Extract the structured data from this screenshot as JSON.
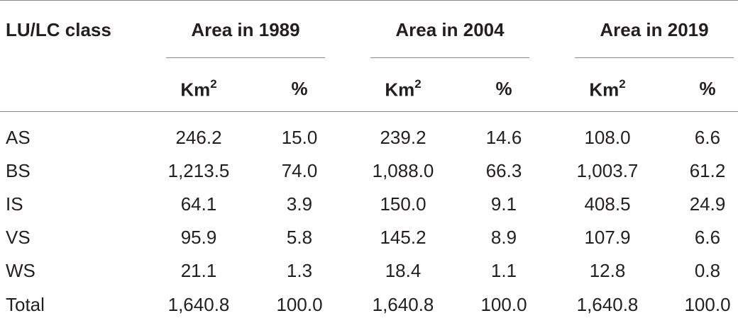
{
  "table": {
    "header": {
      "class_label": "LU/LC class",
      "groups": [
        "Area in 1989",
        "Area in 2004",
        "Area in 2019"
      ],
      "unit_km": "Km",
      "unit_km_sup": "2",
      "unit_pct": "%"
    },
    "rows": [
      {
        "label": "AS",
        "values": [
          "246.2",
          "15.0",
          "239.2",
          "14.6",
          "108.0",
          "6.6"
        ]
      },
      {
        "label": "BS",
        "values": [
          "1,213.5",
          "74.0",
          "1,088.0",
          "66.3",
          "1,003.7",
          "61.2"
        ]
      },
      {
        "label": "IS",
        "values": [
          "64.1",
          "3.9",
          "150.0",
          "9.1",
          "408.5",
          "24.9"
        ]
      },
      {
        "label": "VS",
        "values": [
          "95.9",
          "5.8",
          "145.2",
          "8.9",
          "107.9",
          "6.6"
        ]
      },
      {
        "label": "WS",
        "values": [
          "21.1",
          "1.3",
          "18.4",
          "1.1",
          "12.8",
          "0.8"
        ]
      },
      {
        "label": "Total",
        "values": [
          "1,640.8",
          "100.0",
          "1,640.8",
          "100.0",
          "1,640.8",
          "100.0"
        ]
      }
    ]
  }
}
